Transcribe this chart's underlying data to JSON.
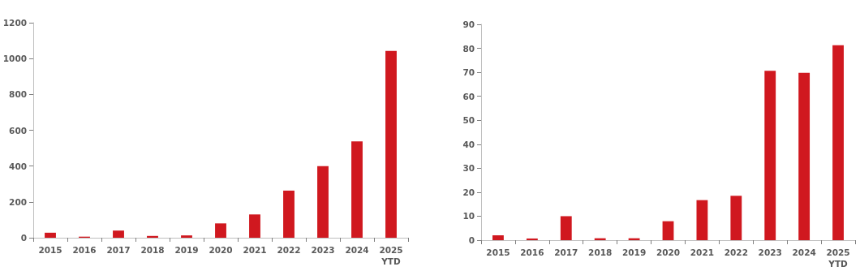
{
  "chart_data": [
    {
      "type": "bar",
      "categories": [
        "2015",
        "2016",
        "2017",
        "2018",
        "2019",
        "2020",
        "2021",
        "2022",
        "2023",
        "2024",
        "2025\nYTD"
      ],
      "series": [
        {
          "color": "#d0181f",
          "values": [
            28,
            6,
            40,
            10,
            13,
            80,
            130,
            263,
            400,
            538,
            1043
          ]
        }
      ],
      "ylim": [
        0,
        1200
      ],
      "yticks": [
        0,
        200,
        400,
        600,
        800,
        1000,
        1200
      ]
    },
    {
      "type": "bar",
      "categories": [
        "2015",
        "2016",
        "2017",
        "2018",
        "2019",
        "2020",
        "2021",
        "2022",
        "2023",
        "2024",
        "2025\nYTD"
      ],
      "series": [
        {
          "color": "#d0181f",
          "values": [
            2.0,
            0.7,
            10.0,
            0.8,
            0.8,
            7.9,
            16.7,
            18.5,
            70.6,
            69.8,
            81.3
          ]
        }
      ],
      "ylim": [
        0,
        90
      ],
      "yticks": [
        0,
        10,
        20,
        30,
        40,
        50,
        60,
        70,
        80,
        90
      ]
    }
  ]
}
